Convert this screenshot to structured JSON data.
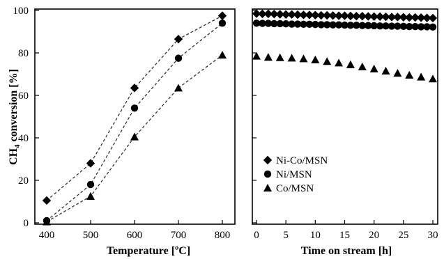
{
  "chart_data": [
    {
      "type": "scatter",
      "xlabel": "Temperature [ºC]",
      "ylabel": "CH4 conversion [%]",
      "xlim": [
        400,
        800
      ],
      "ylim": [
        0,
        100
      ],
      "x_ticks": [
        "400",
        "500",
        "600",
        "700",
        "800"
      ],
      "y_ticks": [
        "0",
        "20",
        "40",
        "60",
        "80",
        "100"
      ],
      "grid": false,
      "connecting_lines": "dashed",
      "series": [
        {
          "marker": "diamond",
          "x": [
            400,
            500,
            600,
            700,
            800
          ],
          "y": [
            10.5,
            28,
            63.5,
            86.5,
            97.5
          ]
        },
        {
          "marker": "circle",
          "x": [
            400,
            500,
            600,
            700,
            800
          ],
          "y": [
            1,
            18,
            54,
            77.5,
            94
          ]
        },
        {
          "marker": "triangle",
          "x": [
            400,
            500,
            600,
            700,
            800
          ],
          "y": [
            0.5,
            12.5,
            40.5,
            63.5,
            79
          ]
        }
      ]
    },
    {
      "type": "scatter",
      "xlabel": "Time on stream [h]",
      "xlim": [
        0,
        30
      ],
      "ylim": [
        0,
        100
      ],
      "x_ticks": [
        "0",
        "5",
        "10",
        "15",
        "20",
        "25",
        "30"
      ],
      "grid": false,
      "legend": {
        "position": "bottom-left",
        "entries": [
          "Ni-Co/MSN",
          "Ni/MSN",
          "Co/MSN"
        ]
      },
      "series": [
        {
          "name": "Ni-Co/MSN",
          "marker": "diamond",
          "x": [
            0,
            1,
            2,
            3,
            4,
            5,
            6,
            7,
            8,
            9,
            10,
            11,
            12,
            13,
            14,
            15,
            16,
            17,
            18,
            19,
            20,
            21,
            22,
            23,
            24,
            25,
            26,
            27,
            28,
            29,
            30
          ],
          "y": [
            98.5,
            98.4,
            98.4,
            98.3,
            98.2,
            98.1,
            98.1,
            98,
            97.9,
            97.9,
            97.8,
            97.7,
            97.7,
            97.6,
            97.5,
            97.5,
            97.4,
            97.3,
            97.3,
            97.2,
            97.1,
            97.1,
            97,
            96.9,
            96.9,
            96.8,
            96.7,
            96.7,
            96.6,
            96.5,
            96.4
          ]
        },
        {
          "name": "Ni/MSN",
          "marker": "circle",
          "x": [
            0,
            1,
            2,
            3,
            4,
            5,
            6,
            7,
            8,
            9,
            10,
            11,
            12,
            13,
            14,
            15,
            16,
            17,
            18,
            19,
            20,
            21,
            22,
            23,
            24,
            25,
            26,
            27,
            28,
            29,
            30
          ],
          "y": [
            94,
            93.9,
            93.9,
            93.8,
            93.8,
            93.7,
            93.6,
            93.6,
            93.5,
            93.5,
            93.4,
            93.3,
            93.3,
            93.2,
            93.2,
            93.1,
            93,
            93,
            92.9,
            92.9,
            92.8,
            92.7,
            92.7,
            92.6,
            92.6,
            92.5,
            92.4,
            92.4,
            92.3,
            92.3,
            92.2
          ]
        },
        {
          "name": "Co/MSN",
          "marker": "triangle",
          "x": [
            0,
            2,
            4,
            6,
            8,
            10,
            12,
            14,
            16,
            18,
            20,
            22,
            24,
            26,
            28,
            30
          ],
          "y": [
            78.5,
            78,
            77.8,
            77.6,
            77.3,
            76.8,
            76,
            75.3,
            74.5,
            73.5,
            72.5,
            71.5,
            70.5,
            69.6,
            68.7,
            67.8
          ]
        }
      ]
    }
  ]
}
